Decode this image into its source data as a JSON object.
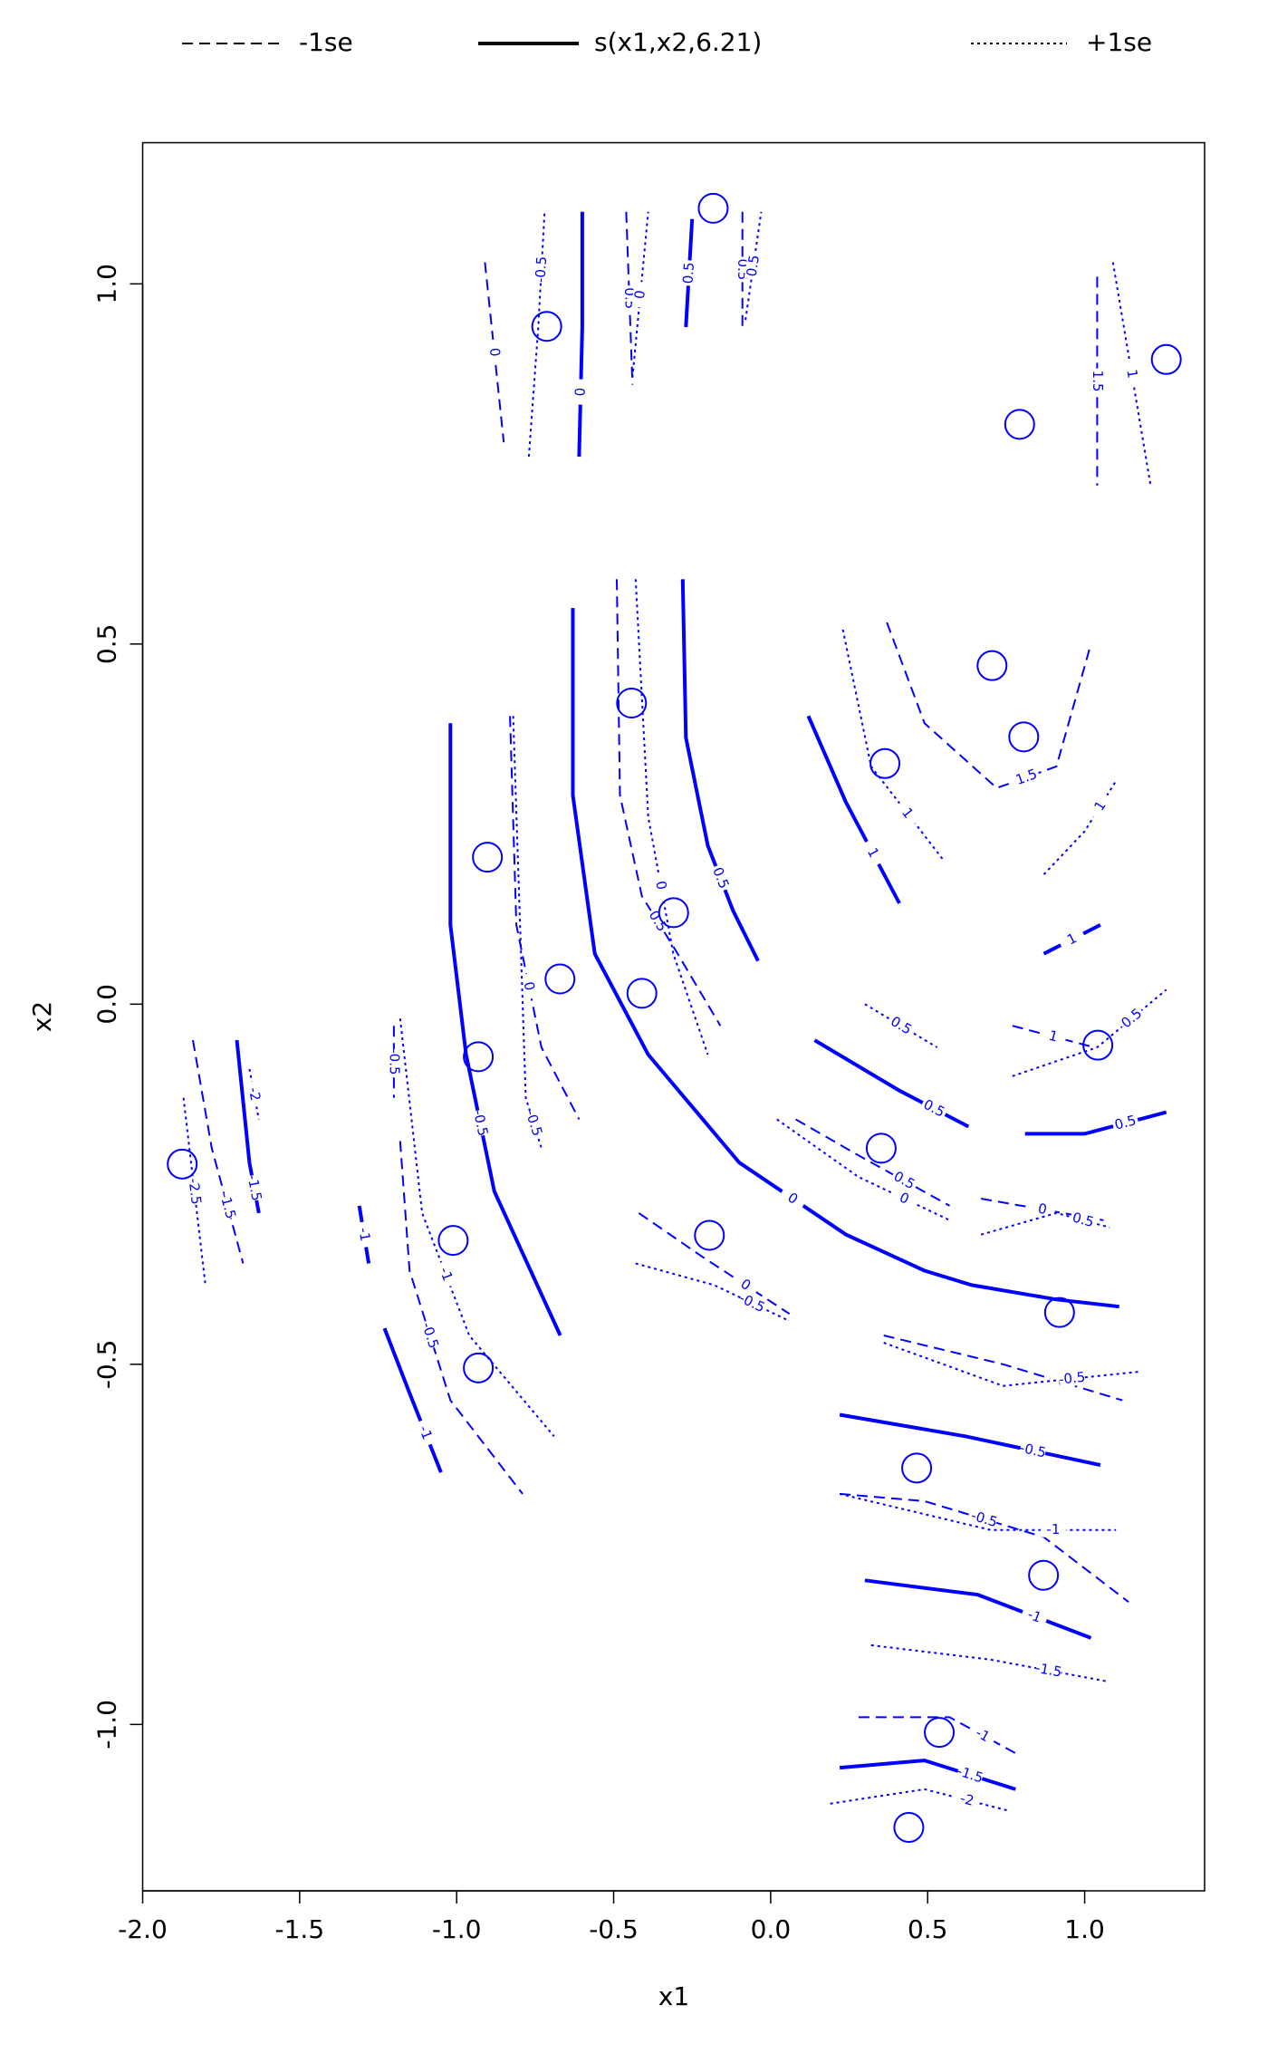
{
  "chart_data": {
    "type": "contour",
    "xlabel": "x1",
    "ylabel": "x2",
    "xlim": [
      -2.0,
      1.382
    ],
    "ylim": [
      -1.231,
      1.196
    ],
    "xticks": [
      {
        "value": -2,
        "label": "-2.0"
      },
      -1.5,
      {
        "value": -1,
        "label": "-1.0"
      },
      -0.5,
      {
        "value": 0,
        "label": "0.0"
      },
      0.5,
      {
        "value": 1,
        "label": "1.0"
      }
    ],
    "yticks": [
      {
        "value": -1,
        "label": "-1.0"
      },
      -0.5,
      {
        "value": 0,
        "label": "0.0"
      },
      0.5,
      {
        "value": 1,
        "label": "1.0"
      }
    ],
    "points": {
      "color": "#0000ff",
      "x": [
        -0.183,
        -0.713,
        1.26,
        0.793,
        0.705,
        0.806,
        0.364,
        -0.443,
        -0.902,
        -0.309,
        -0.671,
        -0.41,
        -0.931,
        1.042,
        -1.874,
        0.352,
        -1.011,
        -0.195,
        0.92,
        -0.931,
        0.465,
        0.869,
        0.537,
        0.44
      ],
      "y": [
        1.105,
        0.941,
        0.895,
        0.805,
        0.47,
        0.371,
        0.334,
        0.418,
        0.204,
        0.127,
        0.035,
        0.015,
        -0.073,
        -0.057,
        -0.222,
        -0.2,
        -0.328,
        -0.321,
        -0.428,
        -0.505,
        -0.644,
        -0.793,
        -1.011,
        -1.143
      ]
    },
    "series": [
      {
        "name": "-1se",
        "linestyle": "dashed",
        "color": "#0000ff",
        "legend_color": "#000000",
        "contours": [
          {
            "level": 0,
            "x": [
              -0.91,
              -0.85
            ],
            "y": [
              1.03,
              0.78
            ]
          },
          {
            "level": 0.5,
            "x": [
              -0.46,
              -0.44
            ],
            "y": [
              1.1,
              0.86
            ]
          },
          {
            "level": 0.5,
            "x": [
              -0.09,
              -0.09
            ],
            "y": [
              1.1,
              0.94
            ]
          },
          {
            "level": 1.5,
            "x": [
              1.04,
              1.04
            ],
            "y": [
              1.01,
              0.72
            ]
          },
          {
            "level": 1.5,
            "x": [
              0.37,
              0.49,
              0.72,
              0.91,
              1.02
            ],
            "y": [
              0.53,
              0.39,
              0.3,
              0.33,
              0.5
            ]
          },
          {
            "level": 0.5,
            "x": [
              -0.49,
              -0.48,
              -0.41,
              -0.31,
              -0.16
            ],
            "y": [
              0.59,
              0.29,
              0.15,
              0.08,
              -0.03
            ]
          },
          {
            "level": 0,
            "x": [
              -0.83,
              -0.81,
              -0.73,
              -0.61
            ],
            "y": [
              0.4,
              0.11,
              -0.06,
              -0.16
            ]
          },
          {
            "level": -0.5,
            "x": [
              -1.2,
              -1.2
            ],
            "y": [
              -0.03,
              -0.13
            ]
          },
          {
            "level": -0.5,
            "x": [
              -1.18,
              -1.15,
              -1.02,
              -0.79
            ],
            "y": [
              -0.19,
              -0.37,
              -0.55,
              -0.68
            ]
          },
          {
            "level": -1.5,
            "x": [
              -1.84,
              -1.78,
              -1.68
            ],
            "y": [
              -0.05,
              -0.2,
              -0.36
            ]
          },
          {
            "level": 0,
            "x": [
              -0.42,
              -0.22,
              0.06
            ],
            "y": [
              -0.29,
              -0.35,
              -0.43
            ]
          },
          {
            "level": 0.5,
            "x": [
              0.08,
              0.28,
              0.57
            ],
            "y": [
              -0.16,
              -0.21,
              -0.28
            ]
          },
          {
            "level": 0,
            "x": [
              0.67,
              1.06
            ],
            "y": [
              -0.27,
              -0.3
            ]
          },
          {
            "level": 1,
            "x": [
              0.77,
              1.03
            ],
            "y": [
              -0.03,
              -0.06
            ]
          },
          {
            "level": 0,
            "x": [
              0.36,
              0.74,
              1.12
            ],
            "y": [
              -0.46,
              -0.5,
              -0.55
            ]
          },
          {
            "level": -0.5,
            "x": [
              0.22,
              0.49,
              0.87,
              1.14
            ],
            "y": [
              -0.68,
              -0.69,
              -0.74,
              -0.83
            ]
          },
          {
            "level": -1,
            "x": [
              0.28,
              0.57,
              0.78
            ],
            "y": [
              -0.99,
              -0.99,
              -1.04
            ]
          }
        ]
      },
      {
        "name": "s(x1,x2,6.21)",
        "linestyle": "solid",
        "color": "#0000ff",
        "legend_color": "#000000",
        "contours": [
          {
            "level": 0,
            "x": [
              -0.6,
              -0.6,
              -0.61
            ],
            "y": [
              1.1,
              0.94,
              0.76
            ]
          },
          {
            "level": 0.5,
            "x": [
              -0.25,
              -0.27
            ],
            "y": [
              1.09,
              0.94
            ]
          },
          {
            "level": 1,
            "x": [
              1.05,
              0.87
            ],
            "y": [
              0.11,
              0.07
            ]
          },
          {
            "level": 0,
            "x": [
              -0.63,
              -0.63,
              -0.56,
              -0.39,
              -0.1,
              0.24,
              0.49,
              0.64,
              0.91,
              1.11
            ],
            "y": [
              0.55,
              0.29,
              0.07,
              -0.07,
              -0.22,
              -0.32,
              -0.37,
              -0.39,
              -0.41,
              -0.42
            ]
          },
          {
            "level": 0.5,
            "x": [
              -0.28,
              -0.27,
              -0.2,
              -0.12,
              -0.04
            ],
            "y": [
              0.59,
              0.37,
              0.22,
              0.13,
              0.06
            ]
          },
          {
            "level": -0.5,
            "x": [
              -1.02,
              -1.02,
              -0.97,
              -0.88,
              -0.67
            ],
            "y": [
              0.39,
              0.11,
              -0.07,
              -0.26,
              -0.46
            ]
          },
          {
            "level": -1,
            "x": [
              -1.23,
              -1.15,
              -1.05
            ],
            "y": [
              -0.45,
              -0.54,
              -0.65
            ]
          },
          {
            "level": -1,
            "x": [
              -1.31,
              -1.28
            ],
            "y": [
              -0.28,
              -0.36
            ]
          },
          {
            "level": -1.5,
            "x": [
              -1.7,
              -1.66,
              -1.63
            ],
            "y": [
              -0.05,
              -0.22,
              -0.29
            ]
          },
          {
            "level": 1,
            "x": [
              0.12,
              0.24,
              0.41
            ],
            "y": [
              0.4,
              0.28,
              0.14
            ]
          },
          {
            "level": 0.5,
            "x": [
              0.14,
              0.41,
              0.63
            ],
            "y": [
              -0.05,
              -0.12,
              -0.17
            ]
          },
          {
            "level": 0.5,
            "x": [
              0.81,
              1.0,
              1.26
            ],
            "y": [
              -0.18,
              -0.18,
              -0.15
            ]
          },
          {
            "level": -0.5,
            "x": [
              0.22,
              0.62,
              1.05
            ],
            "y": [
              -0.57,
              -0.6,
              -0.64
            ]
          },
          {
            "level": -1,
            "x": [
              0.3,
              0.66,
              1.02
            ],
            "y": [
              -0.8,
              -0.82,
              -0.88
            ]
          },
          {
            "level": -1.5,
            "x": [
              0.22,
              0.49,
              0.78
            ],
            "y": [
              -1.06,
              -1.05,
              -1.09
            ]
          }
        ]
      },
      {
        "name": "+1se",
        "linestyle": "dotted",
        "color": "#0000ff",
        "legend_color": "#000000",
        "contours": [
          {
            "level": -0.5,
            "x": [
              -0.77,
              -0.74,
              -0.72
            ],
            "y": [
              0.76,
              0.94,
              1.1
            ]
          },
          {
            "level": 0,
            "x": [
              -0.44,
              -0.39
            ],
            "y": [
              0.87,
              1.1
            ]
          },
          {
            "level": 0.5,
            "x": [
              -0.08,
              -0.03
            ],
            "y": [
              0.95,
              1.1
            ]
          },
          {
            "level": 1,
            "x": [
              1.09,
              1.21
            ],
            "y": [
              1.03,
              0.72
            ]
          },
          {
            "level": 1,
            "x": [
              0.23,
              0.32,
              0.55
            ],
            "y": [
              0.52,
              0.33,
              0.2
            ]
          },
          {
            "level": 1,
            "x": [
              0.87,
              1.0,
              1.1
            ],
            "y": [
              0.18,
              0.24,
              0.31
            ]
          },
          {
            "level": 0,
            "x": [
              -0.43,
              -0.39,
              -0.31,
              -0.2
            ],
            "y": [
              0.59,
              0.26,
              0.07,
              -0.07
            ]
          },
          {
            "level": -0.5,
            "x": [
              -0.82,
              -0.78,
              -0.73
            ],
            "y": [
              0.4,
              -0.13,
              -0.2
            ]
          },
          {
            "level": -1,
            "x": [
              -1.18,
              -1.11,
              -0.96,
              -0.69
            ],
            "y": [
              -0.02,
              -0.29,
              -0.46,
              -0.6
            ]
          },
          {
            "level": -2,
            "x": [
              -1.66,
              -1.63
            ],
            "y": [
              -0.09,
              -0.16
            ]
          },
          {
            "level": -2.5,
            "x": [
              -1.87,
              -1.8
            ],
            "y": [
              -0.13,
              -0.39
            ]
          },
          {
            "level": -0.5,
            "x": [
              -0.43,
              -0.18,
              0.06
            ],
            "y": [
              -0.36,
              -0.39,
              -0.44
            ]
          },
          {
            "level": 0,
            "x": [
              0.02,
              0.28,
              0.57
            ],
            "y": [
              -0.16,
              -0.24,
              -0.3
            ]
          },
          {
            "level": 0.5,
            "x": [
              0.3,
              0.53
            ],
            "y": [
              0.0,
              -0.06
            ]
          },
          {
            "level": 0.5,
            "x": [
              0.77,
              1.04,
              1.26
            ],
            "y": [
              -0.1,
              -0.06,
              0.02
            ]
          },
          {
            "level": 0.5,
            "x": [
              0.67,
              0.91,
              1.08
            ],
            "y": [
              -0.32,
              -0.29,
              -0.31
            ]
          },
          {
            "level": -0.5,
            "x": [
              0.36,
              0.74,
              1.18
            ],
            "y": [
              -0.47,
              -0.53,
              -0.51
            ]
          },
          {
            "level": -1,
            "x": [
              0.22,
              0.7,
              1.1
            ],
            "y": [
              -0.68,
              -0.73,
              -0.73
            ]
          },
          {
            "level": -1.5,
            "x": [
              0.32,
              0.7,
              1.07
            ],
            "y": [
              -0.89,
              -0.91,
              -0.94
            ]
          },
          {
            "level": -2,
            "x": [
              0.19,
              0.49,
              0.76
            ],
            "y": [
              -1.11,
              -1.09,
              -1.12
            ]
          }
        ]
      }
    ]
  }
}
